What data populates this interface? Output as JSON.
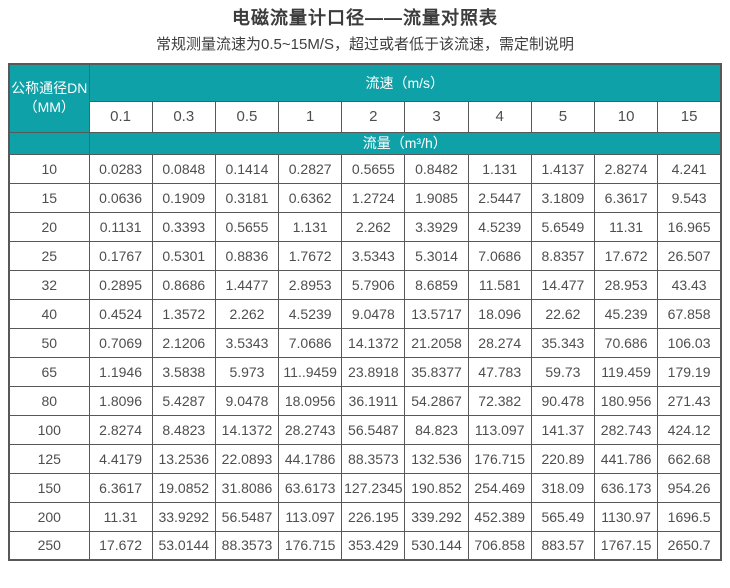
{
  "page": {
    "title": "电磁流量计口径——流量对照表",
    "subtitle": "常规测量流速为0.5~15M/S，超过或者低于该流速，需定制说明"
  },
  "table": {
    "corner": {
      "line1": "公称通径DN",
      "line2": "（MM）"
    },
    "velocity_label": "流速（m/s）",
    "flow_label": "流量（m³/h）",
    "columns": [
      "0.1",
      "0.3",
      "0.5",
      "1",
      "2",
      "3",
      "4",
      "5",
      "10",
      "15"
    ],
    "rows": [
      {
        "dn": "10",
        "values": [
          "0.0283",
          "0.0848",
          "0.1414",
          "0.2827",
          "0.5655",
          "0.8482",
          "1.131",
          "1.4137",
          "2.8274",
          "4.241"
        ]
      },
      {
        "dn": "15",
        "values": [
          "0.0636",
          "0.1909",
          "0.3181",
          "0.6362",
          "1.2724",
          "1.9085",
          "2.5447",
          "3.1809",
          "6.3617",
          "9.543"
        ]
      },
      {
        "dn": "20",
        "values": [
          "0.1131",
          "0.3393",
          "0.5655",
          "1.131",
          "2.262",
          "3.3929",
          "4.5239",
          "5.6549",
          "11.31",
          "16.965"
        ]
      },
      {
        "dn": "25",
        "values": [
          "0.1767",
          "0.5301",
          "0.8836",
          "1.7672",
          "3.5343",
          "5.3014",
          "7.0686",
          "8.8357",
          "17.672",
          "26.507"
        ]
      },
      {
        "dn": "32",
        "values": [
          "0.2895",
          "0.8686",
          "1.4477",
          "2.8953",
          "5.7906",
          "8.6859",
          "11.581",
          "14.477",
          "28.953",
          "43.43"
        ]
      },
      {
        "dn": "40",
        "values": [
          "0.4524",
          "1.3572",
          "2.262",
          "4.5239",
          "9.0478",
          "13.5717",
          "18.096",
          "22.62",
          "45.239",
          "67.858"
        ]
      },
      {
        "dn": "50",
        "values": [
          "0.7069",
          "2.1206",
          "3.5343",
          "7.0686",
          "14.1372",
          "21.2058",
          "28.274",
          "35.343",
          "70.686",
          "106.03"
        ]
      },
      {
        "dn": "65",
        "values": [
          "1.1946",
          "3.5838",
          "5.973",
          "11..9459",
          "23.8918",
          "35.8377",
          "47.783",
          "59.73",
          "119.459",
          "179.19"
        ]
      },
      {
        "dn": "80",
        "values": [
          "1.8096",
          "5.4287",
          "9.0478",
          "18.0956",
          "36.1911",
          "54.2867",
          "72.382",
          "90.478",
          "180.956",
          "271.43"
        ]
      },
      {
        "dn": "100",
        "values": [
          "2.8274",
          "8.4823",
          "14.1372",
          "28.2743",
          "56.5487",
          "84.823",
          "113.097",
          "141.37",
          "282.743",
          "424.12"
        ]
      },
      {
        "dn": "125",
        "values": [
          "4.4179",
          "13.2536",
          "22.0893",
          "44.1786",
          "88.3573",
          "132.536",
          "176.715",
          "220.89",
          "441.786",
          "662.68"
        ]
      },
      {
        "dn": "150",
        "values": [
          "6.3617",
          "19.0852",
          "31.8086",
          "63.6173",
          "127.2345",
          "190.852",
          "254.469",
          "318.09",
          "636.173",
          "954.26"
        ]
      },
      {
        "dn": "200",
        "values": [
          "11.31",
          "33.9292",
          "56.5487",
          "113.097",
          "226.195",
          "339.292",
          "452.389",
          "565.49",
          "1130.97",
          "1696.5"
        ]
      },
      {
        "dn": "250",
        "values": [
          "17.672",
          "53.0144",
          "88.3573",
          "176.715",
          "353.429",
          "530.144",
          "706.858",
          "883.57",
          "1767.15",
          "2650.7"
        ]
      }
    ]
  },
  "colors": {
    "header_teal": "#0ea2a8",
    "header_inner_border_red": "#a3403b",
    "cell_border_gray": "#57585a",
    "text_dark_gray": "#4e4e4e",
    "header_text_white": "#ffffff"
  }
}
